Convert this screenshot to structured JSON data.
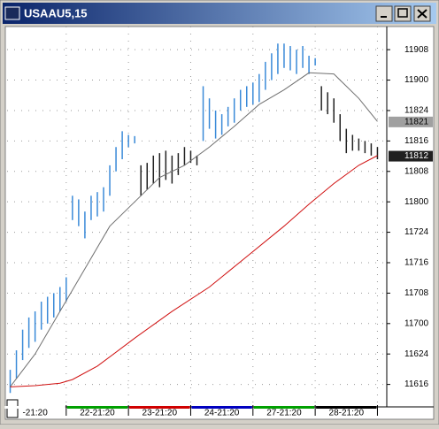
{
  "window": {
    "title": "USAAU5,15"
  },
  "chart_data": {
    "type": "range-bar",
    "xlim": [
      0,
      61
    ],
    "ylim": [
      116.33,
      119.44
    ],
    "yticks": [
      {
        "value": 116.5,
        "label": "11616"
      },
      {
        "value": 116.75,
        "label": "11624"
      },
      {
        "value": 117.0,
        "label": "11700"
      },
      {
        "value": 117.25,
        "label": "11708"
      },
      {
        "value": 117.5,
        "label": "11716"
      },
      {
        "value": 117.75,
        "label": "11724"
      },
      {
        "value": 118.0,
        "label": "11800"
      },
      {
        "value": 118.25,
        "label": "11808"
      },
      {
        "value": 118.5,
        "label": "11816"
      },
      {
        "value": 118.75,
        "label": "11824"
      },
      {
        "value": 119.0,
        "label": "11900"
      },
      {
        "value": 119.25,
        "label": "11908"
      }
    ],
    "xticks": [
      {
        "value": 4,
        "label": "-21:20"
      },
      {
        "value": 14,
        "label": "22-21:20"
      },
      {
        "value": 24,
        "label": "23-21:20"
      },
      {
        "value": 34,
        "label": "24-21:20"
      },
      {
        "value": 44,
        "label": "27-21:20"
      },
      {
        "value": 54,
        "label": "28-21:20"
      }
    ],
    "xtick_colors": [
      "#ffffff",
      "#00a000",
      "#d00000",
      "#0000c0",
      "#00a000",
      "#000000"
    ],
    "grid": true,
    "series": [
      {
        "color": "#3a8ad8",
        "x": [
          0,
          1,
          2,
          3,
          4,
          5,
          6,
          7,
          8,
          9,
          10,
          11,
          12,
          13,
          14,
          15,
          16,
          17,
          18,
          19,
          20
        ],
        "high": [
          116.62,
          116.78,
          116.95,
          117.05,
          117.1,
          117.18,
          117.22,
          117.25,
          117.3,
          117.38,
          118.05,
          118.02,
          117.92,
          118.05,
          118.08,
          118.12,
          118.3,
          118.45,
          118.58,
          118.55,
          118.54
        ],
        "low": [
          116.43,
          116.55,
          116.7,
          116.8,
          116.85,
          116.95,
          117.0,
          117.05,
          117.1,
          117.18,
          117.85,
          117.8,
          117.7,
          117.85,
          117.88,
          117.92,
          118.05,
          118.25,
          118.35,
          118.45,
          118.48
        ]
      },
      {
        "color": "#222222",
        "x": [
          21,
          22,
          23,
          24,
          25,
          26,
          27,
          28,
          29,
          30
        ],
        "high": [
          118.3,
          118.32,
          118.38,
          118.4,
          118.42,
          118.38,
          118.4,
          118.45,
          118.42,
          118.38
        ],
        "low": [
          118.05,
          118.1,
          118.15,
          118.12,
          118.18,
          118.15,
          118.22,
          118.3,
          118.32,
          118.3
        ]
      },
      {
        "color": "#3a8ad8",
        "x": [
          31,
          32,
          33,
          34,
          35,
          36,
          37,
          38,
          39,
          40,
          41,
          42,
          43,
          44,
          45,
          46,
          47,
          48,
          49
        ],
        "high": [
          118.95,
          118.85,
          118.75,
          118.72,
          118.78,
          118.85,
          118.92,
          118.95,
          118.98,
          119.05,
          119.15,
          119.22,
          119.3,
          119.3,
          119.28,
          119.25,
          119.28,
          119.2,
          119.18
        ],
        "low": [
          118.5,
          118.6,
          118.52,
          118.55,
          118.62,
          118.65,
          118.75,
          118.78,
          118.8,
          118.82,
          118.92,
          119.0,
          119.05,
          119.1,
          119.08,
          119.05,
          119.1,
          119.05,
          119.12
        ]
      },
      {
        "color": "#222222",
        "x": [
          50,
          51,
          52,
          53,
          54,
          55,
          56,
          57,
          58,
          59
        ],
        "high": [
          118.95,
          118.9,
          118.85,
          118.72,
          118.6,
          118.55,
          118.52,
          118.5,
          118.48,
          118.45
        ],
        "low": [
          118.75,
          118.72,
          118.65,
          118.5,
          118.4,
          118.42,
          118.42,
          118.4,
          118.38,
          118.35
        ]
      }
    ],
    "lines": [
      {
        "color": "#707070",
        "x": [
          0,
          4,
          8,
          12,
          16,
          20,
          24,
          28,
          32,
          36,
          40,
          44,
          48,
          52,
          56,
          59
        ],
        "values": [
          116.48,
          116.75,
          117.1,
          117.45,
          117.8,
          118.0,
          118.2,
          118.3,
          118.45,
          118.62,
          118.8,
          118.92,
          119.06,
          119.05,
          118.85,
          118.66
        ]
      },
      {
        "color": "#d01010",
        "x": [
          0,
          4,
          8,
          10,
          14,
          20,
          26,
          32,
          38,
          44,
          48,
          52,
          56,
          59
        ],
        "values": [
          116.48,
          116.49,
          116.51,
          116.54,
          116.65,
          116.88,
          117.1,
          117.3,
          117.55,
          117.8,
          117.98,
          118.15,
          118.3,
          118.38
        ]
      }
    ],
    "price_markers": [
      {
        "value": 118.65625,
        "label": "11821",
        "color": "#a0a0a0",
        "text_color": "#000000"
      },
      {
        "value": 118.375,
        "label": "11812",
        "color": "#202020",
        "text_color": "#ffffff"
      }
    ]
  }
}
